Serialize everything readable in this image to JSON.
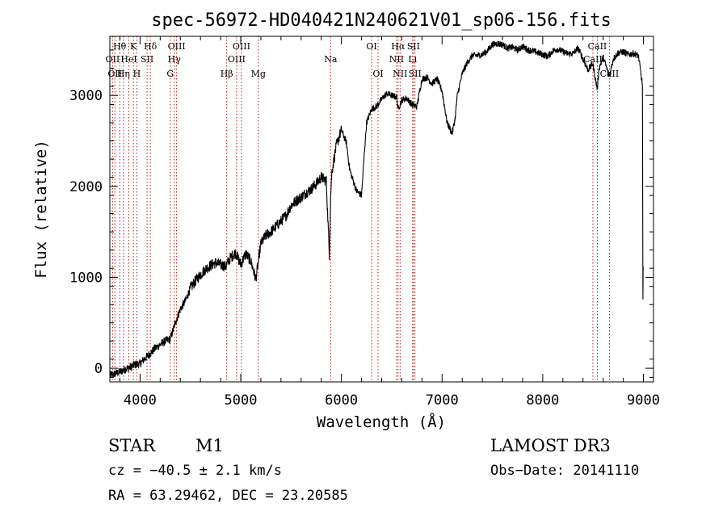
{
  "chart_data": {
    "type": "line",
    "title": "spec-56972-HD040421N240621V01_sp06-156.fits",
    "xlabel": "Wavelength (Å)",
    "ylabel": "Flux (relative)",
    "xlim": [
      3700,
      9100
    ],
    "ylim": [
      -150,
      3650
    ],
    "xticks": [
      4000,
      5000,
      6000,
      7000,
      8000,
      9000
    ],
    "yticks": [
      0,
      1000,
      2000,
      3000
    ],
    "xtick_labels": [
      "4000",
      "5000",
      "6000",
      "7000",
      "8000",
      "9000"
    ],
    "ytick_labels": [
      "0",
      "1000",
      "2000",
      "3000"
    ],
    "grid": false,
    "series": [
      {
        "name": "spectrum",
        "x": [
          3700,
          3750,
          3800,
          3850,
          3900,
          3950,
          4000,
          4050,
          4100,
          4150,
          4200,
          4250,
          4300,
          4350,
          4400,
          4450,
          4500,
          4550,
          4600,
          4650,
          4700,
          4750,
          4800,
          4850,
          4900,
          4950,
          5000,
          5050,
          5100,
          5150,
          5200,
          5250,
          5300,
          5350,
          5400,
          5450,
          5500,
          5550,
          5600,
          5650,
          5700,
          5750,
          5800,
          5850,
          5880,
          5893,
          5905,
          5950,
          6000,
          6050,
          6080,
          6100,
          6150,
          6200,
          6230,
          6250,
          6300,
          6350,
          6400,
          6450,
          6500,
          6550,
          6563,
          6600,
          6650,
          6700,
          6750,
          6800,
          6850,
          6900,
          6950,
          7000,
          7050,
          7100,
          7130,
          7150,
          7200,
          7250,
          7300,
          7350,
          7400,
          7450,
          7500,
          7550,
          7600,
          7650,
          7700,
          7750,
          7800,
          7850,
          7900,
          7950,
          8000,
          8050,
          8100,
          8150,
          8200,
          8250,
          8300,
          8350,
          8400,
          8450,
          8498,
          8520,
          8542,
          8560,
          8600,
          8662,
          8700,
          8750,
          8800,
          8850,
          8900,
          8950,
          8990
        ],
        "y": [
          -80,
          -60,
          -40,
          -10,
          10,
          40,
          50,
          110,
          160,
          220,
          260,
          300,
          320,
          500,
          650,
          740,
          880,
          960,
          1030,
          1090,
          1130,
          1160,
          1140,
          1120,
          1220,
          1270,
          1140,
          1260,
          1180,
          980,
          1370,
          1460,
          1500,
          1560,
          1620,
          1680,
          1790,
          1840,
          1880,
          1930,
          1970,
          2030,
          2100,
          2060,
          1250,
          1880,
          2160,
          2450,
          2620,
          2480,
          2200,
          2120,
          1950,
          1900,
          2400,
          2700,
          2850,
          2880,
          2960,
          3020,
          3000,
          2980,
          2850,
          2950,
          2970,
          2900,
          2880,
          3180,
          3200,
          3130,
          3180,
          3050,
          2700,
          2580,
          2750,
          2990,
          3240,
          3360,
          3440,
          3440,
          3450,
          3490,
          3560,
          3570,
          3560,
          3520,
          3530,
          3500,
          3540,
          3500,
          3490,
          3470,
          3450,
          3430,
          3490,
          3510,
          3480,
          3460,
          3460,
          3520,
          3400,
          3280,
          3350,
          3200,
          3070,
          3300,
          3420,
          3210,
          3400,
          3470,
          3480,
          3450,
          3460,
          3440,
          3120
        ]
      }
    ],
    "lines": [
      {
        "wl": 3727,
        "label": "OII",
        "row": 2
      },
      {
        "wl": 3750,
        "label": "OII",
        "row": 3
      },
      {
        "wl": 3798,
        "label": "Hθ",
        "row": 1
      },
      {
        "wl": 3835,
        "label": "Hη",
        "row": 3
      },
      {
        "wl": 3889,
        "label": "HeI",
        "row": 2
      },
      {
        "wl": 3934,
        "label": "K",
        "row": 1
      },
      {
        "wl": 3968,
        "label": "H",
        "row": 3
      },
      {
        "wl": 4070,
        "label": "SII",
        "row": 2
      },
      {
        "wl": 4102,
        "label": "Hδ",
        "row": 1
      },
      {
        "wl": 4300,
        "label": "G",
        "row": 3
      },
      {
        "wl": 4340,
        "label": "Hγ",
        "row": 2
      },
      {
        "wl": 4363,
        "label": "OIII",
        "row": 1
      },
      {
        "wl": 4861,
        "label": "Hβ",
        "row": 3
      },
      {
        "wl": 4959,
        "label": "OIII",
        "row": 2
      },
      {
        "wl": 5007,
        "label": "OIII",
        "row": 1
      },
      {
        "wl": 5175,
        "label": "Mg",
        "row": 3
      },
      {
        "wl": 5893,
        "label": "Na",
        "row": 2
      },
      {
        "wl": 6300,
        "label": "OI",
        "row": 1
      },
      {
        "wl": 6364,
        "label": "OI",
        "row": 3
      },
      {
        "wl": 6548,
        "label": "NII",
        "row": 2
      },
      {
        "wl": 6563,
        "label": "Hα",
        "row": 1
      },
      {
        "wl": 6583,
        "label": "NII",
        "row": 3
      },
      {
        "wl": 6707,
        "label": "Li",
        "row": 2
      },
      {
        "wl": 6716,
        "label": "SII",
        "row": 1
      },
      {
        "wl": 6731,
        "label": "SII",
        "row": 3
      },
      {
        "wl": 8498,
        "label": "CaII",
        "row": 2
      },
      {
        "wl": 8542,
        "label": "CaII",
        "row": 1
      },
      {
        "wl": 8662,
        "label": "CaII",
        "row": 3
      }
    ]
  },
  "info": {
    "object_class": "STAR",
    "subclass": "M1",
    "survey": "LAMOST DR3",
    "cz": "cz = −40.5 ± 2.1 km/s",
    "obs_date": "Obs−Date: 20141110",
    "coords": "RA =  63.29462, DEC =  23.20585"
  }
}
